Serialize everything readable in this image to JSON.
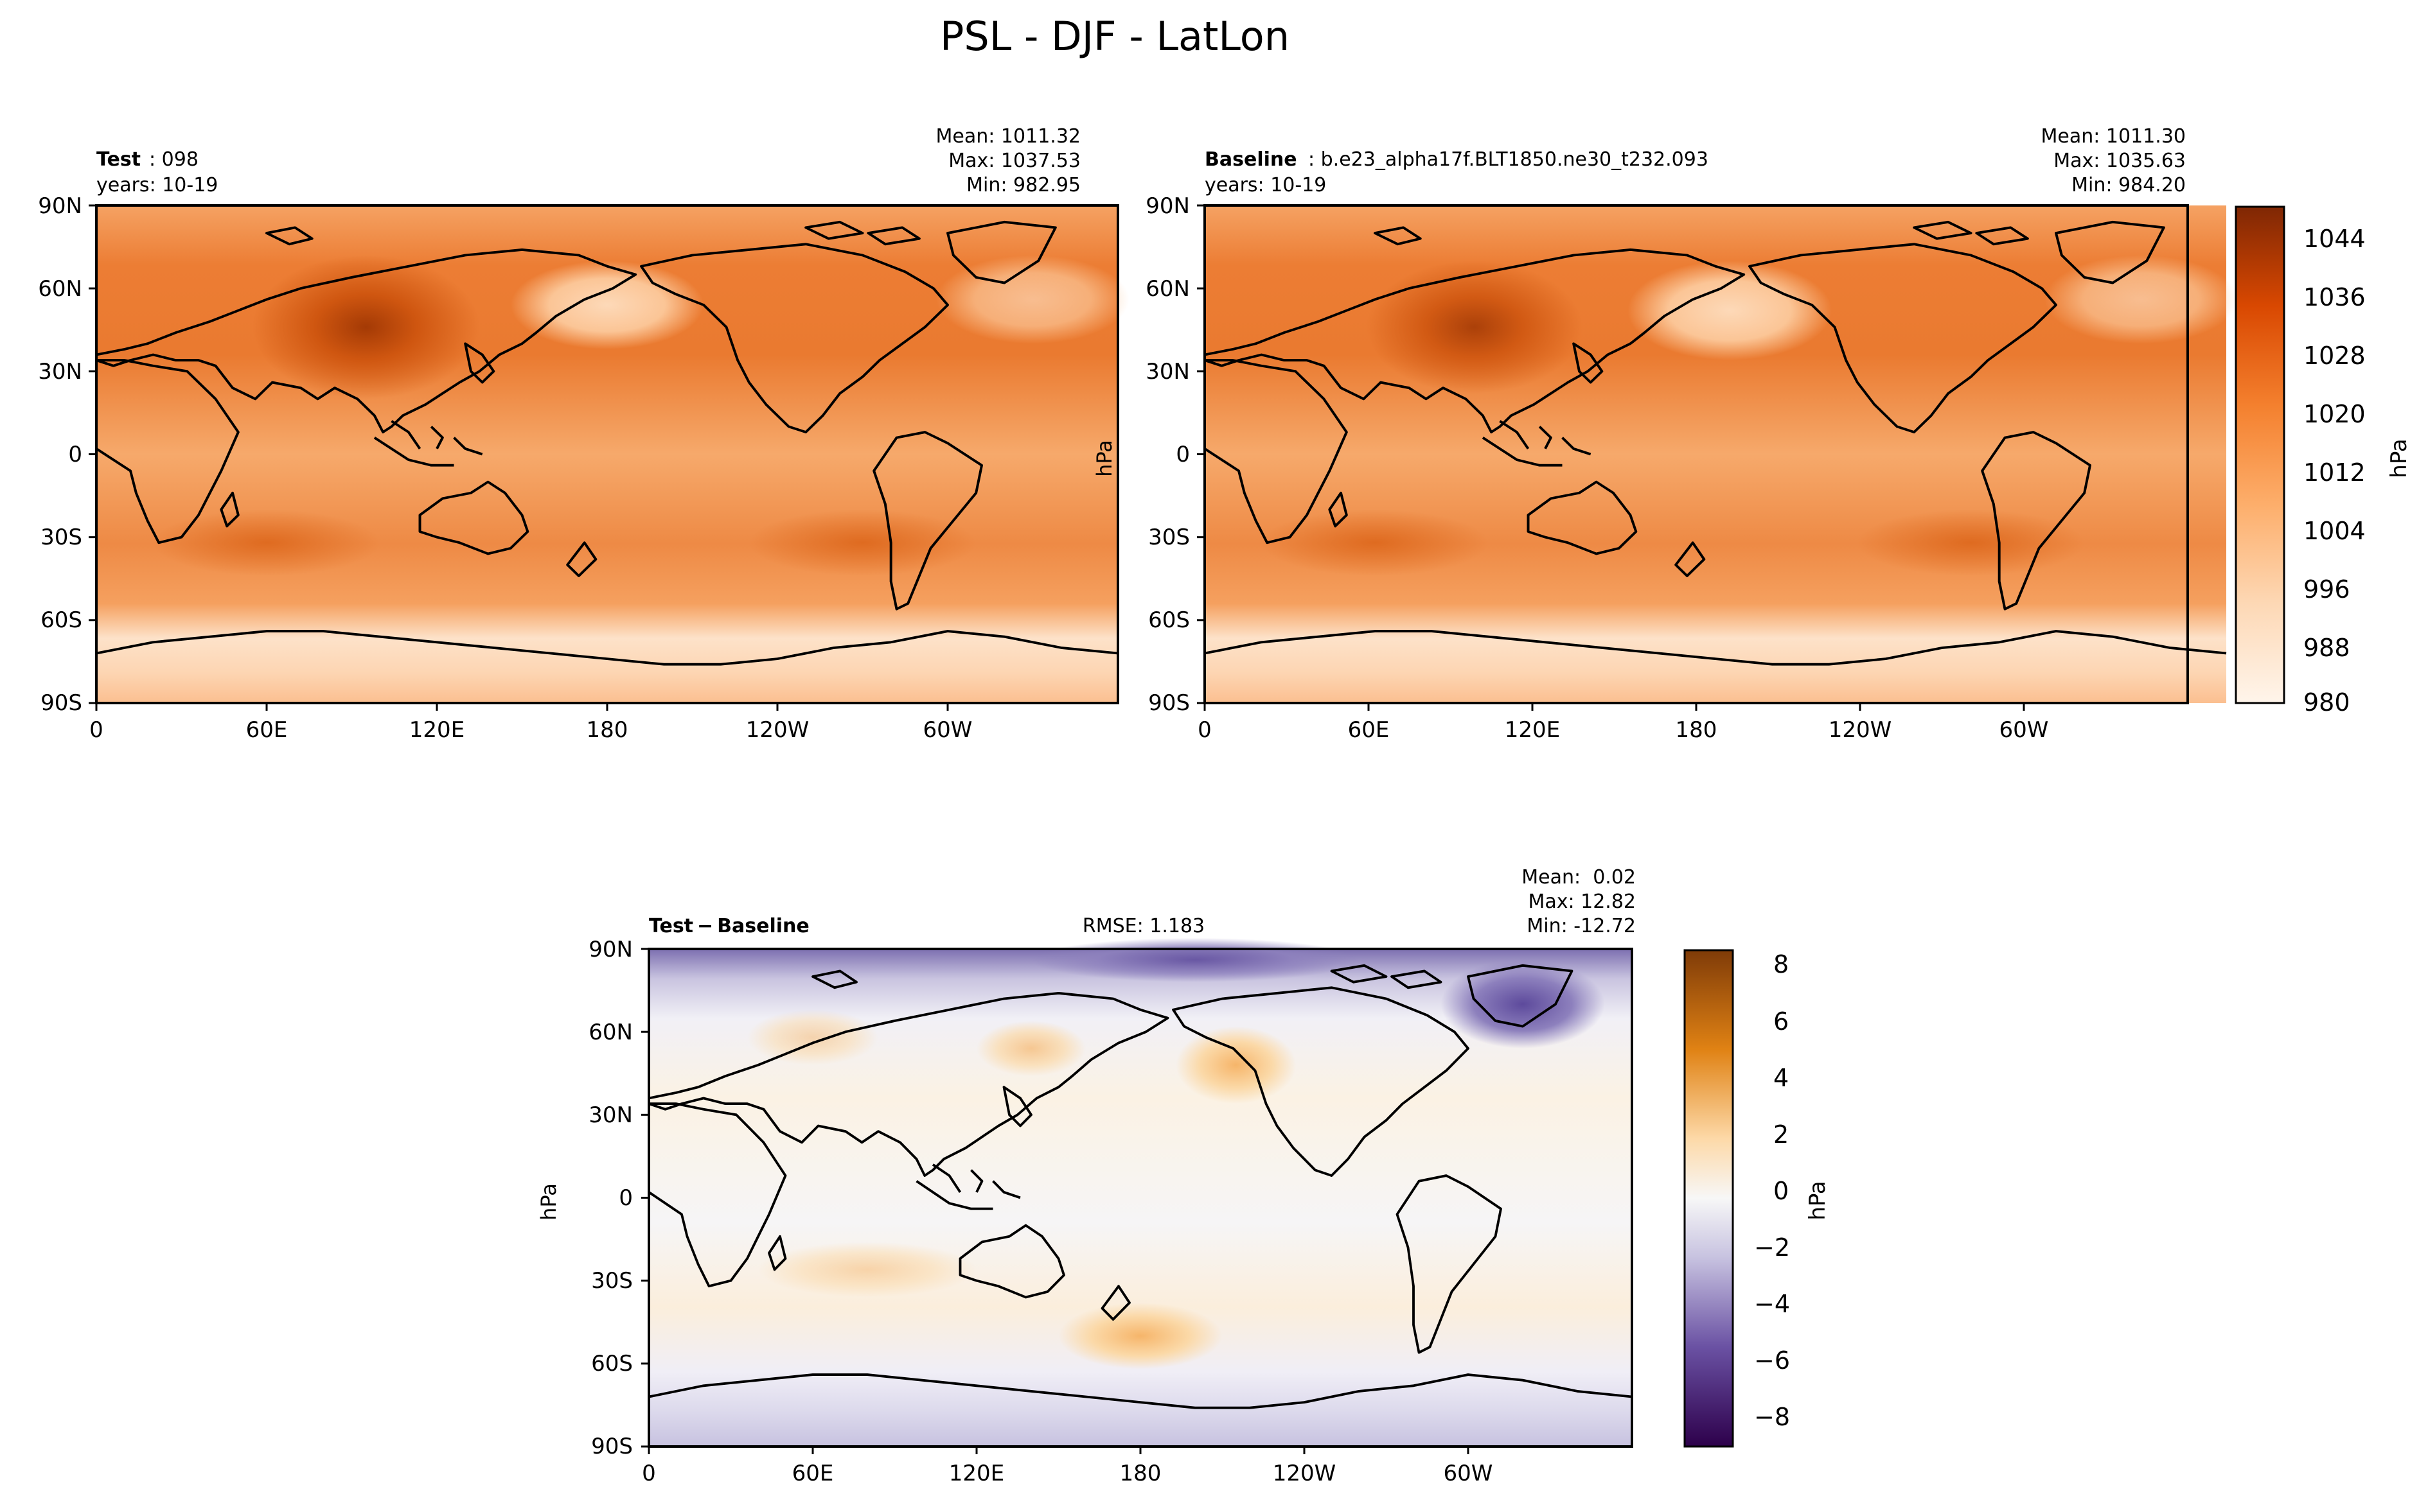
{
  "figure": {
    "title": "PSL - DJF - LatLon"
  },
  "chart_data": [
    {
      "type": "heatmap",
      "id": "test",
      "title_bold": "Test",
      "title_rest": ": 098",
      "years": "years: 10-19",
      "stats": {
        "mean": "Mean: 1011.32",
        "max": "Max: 1037.53",
        "min": "Min: 982.95"
      },
      "x_ticks": [
        "0",
        "60E",
        "120E",
        "180",
        "120W",
        "60W"
      ],
      "y_ticks": [
        "90N",
        "60N",
        "30N",
        "0",
        "30S",
        "60S",
        "90S"
      ],
      "xlim": [
        0,
        360
      ],
      "ylim": [
        -90,
        90
      ],
      "ylabel": "",
      "colormap": "Oranges"
    },
    {
      "type": "heatmap",
      "id": "baseline",
      "title_bold": "Baseline",
      "title_rest": ": b.e23_alpha17f.BLT1850.ne30_t232.093",
      "years": "years: 10-19",
      "stats": {
        "mean": "Mean: 1011.30",
        "max": "Max: 1035.63",
        "min": "Min: 984.20"
      },
      "x_ticks": [
        "0",
        "60E",
        "120E",
        "180",
        "120W",
        "60W"
      ],
      "y_ticks": [
        "90N",
        "60N",
        "30N",
        "0",
        "30S",
        "60S",
        "90S"
      ],
      "xlim": [
        0,
        360
      ],
      "ylim": [
        -90,
        90
      ],
      "ylabel": "hPa",
      "colormap": "Oranges",
      "colorbar": {
        "ticks": [
          "1044",
          "1036",
          "1028",
          "1020",
          "1012",
          "1004",
          "996",
          "988",
          "980"
        ],
        "range": [
          980,
          1048
        ],
        "label": "hPa"
      }
    },
    {
      "type": "heatmap",
      "id": "diff",
      "title_bold": "Test − Baseline",
      "rmse": "RMSE: 1.183",
      "stats": {
        "mean": "Mean:  0.02",
        "max": "Max: 12.82",
        "min": "Min: -12.72"
      },
      "x_ticks": [
        "0",
        "60E",
        "120E",
        "180",
        "120W",
        "60W"
      ],
      "y_ticks": [
        "90N",
        "60N",
        "30N",
        "0",
        "30S",
        "60S",
        "90S"
      ],
      "xlim": [
        0,
        360
      ],
      "ylim": [
        -90,
        90
      ],
      "ylabel": "hPa",
      "colormap": "PuOr_r",
      "colorbar": {
        "ticks": [
          "8",
          "6",
          "4",
          "2",
          "0",
          "−2",
          "−4",
          "−6",
          "−8"
        ],
        "range": [
          -9,
          9
        ],
        "label": "hPa"
      }
    }
  ],
  "colors": {
    "orange_min": "#fff5eb",
    "orange_max": "#7f2704",
    "diff_neg": "#2d004b",
    "diff_pos": "#7f3b08",
    "diff_mid": "#f7f7f7"
  }
}
